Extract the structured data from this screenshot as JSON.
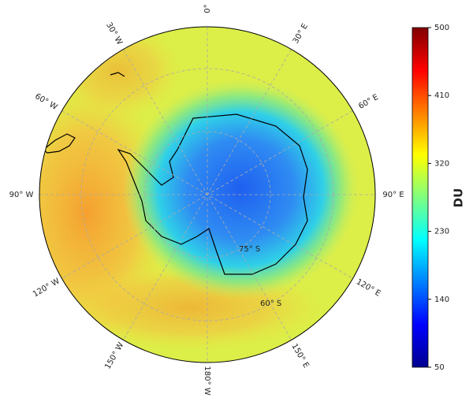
{
  "longitude_labels": [
    "0°",
    "30° E",
    "60° E",
    "90° E",
    "120° E",
    "150° E",
    "180° W",
    "150° W",
    "120° W",
    "90° W",
    "60° W",
    "30° W"
  ],
  "latitude_labels": [
    "75° S",
    "60° S"
  ],
  "colorbar": {
    "label": "DU",
    "lim": [
      50,
      500
    ],
    "ticks": [
      50,
      140,
      230,
      320,
      410,
      500
    ]
  }
}
